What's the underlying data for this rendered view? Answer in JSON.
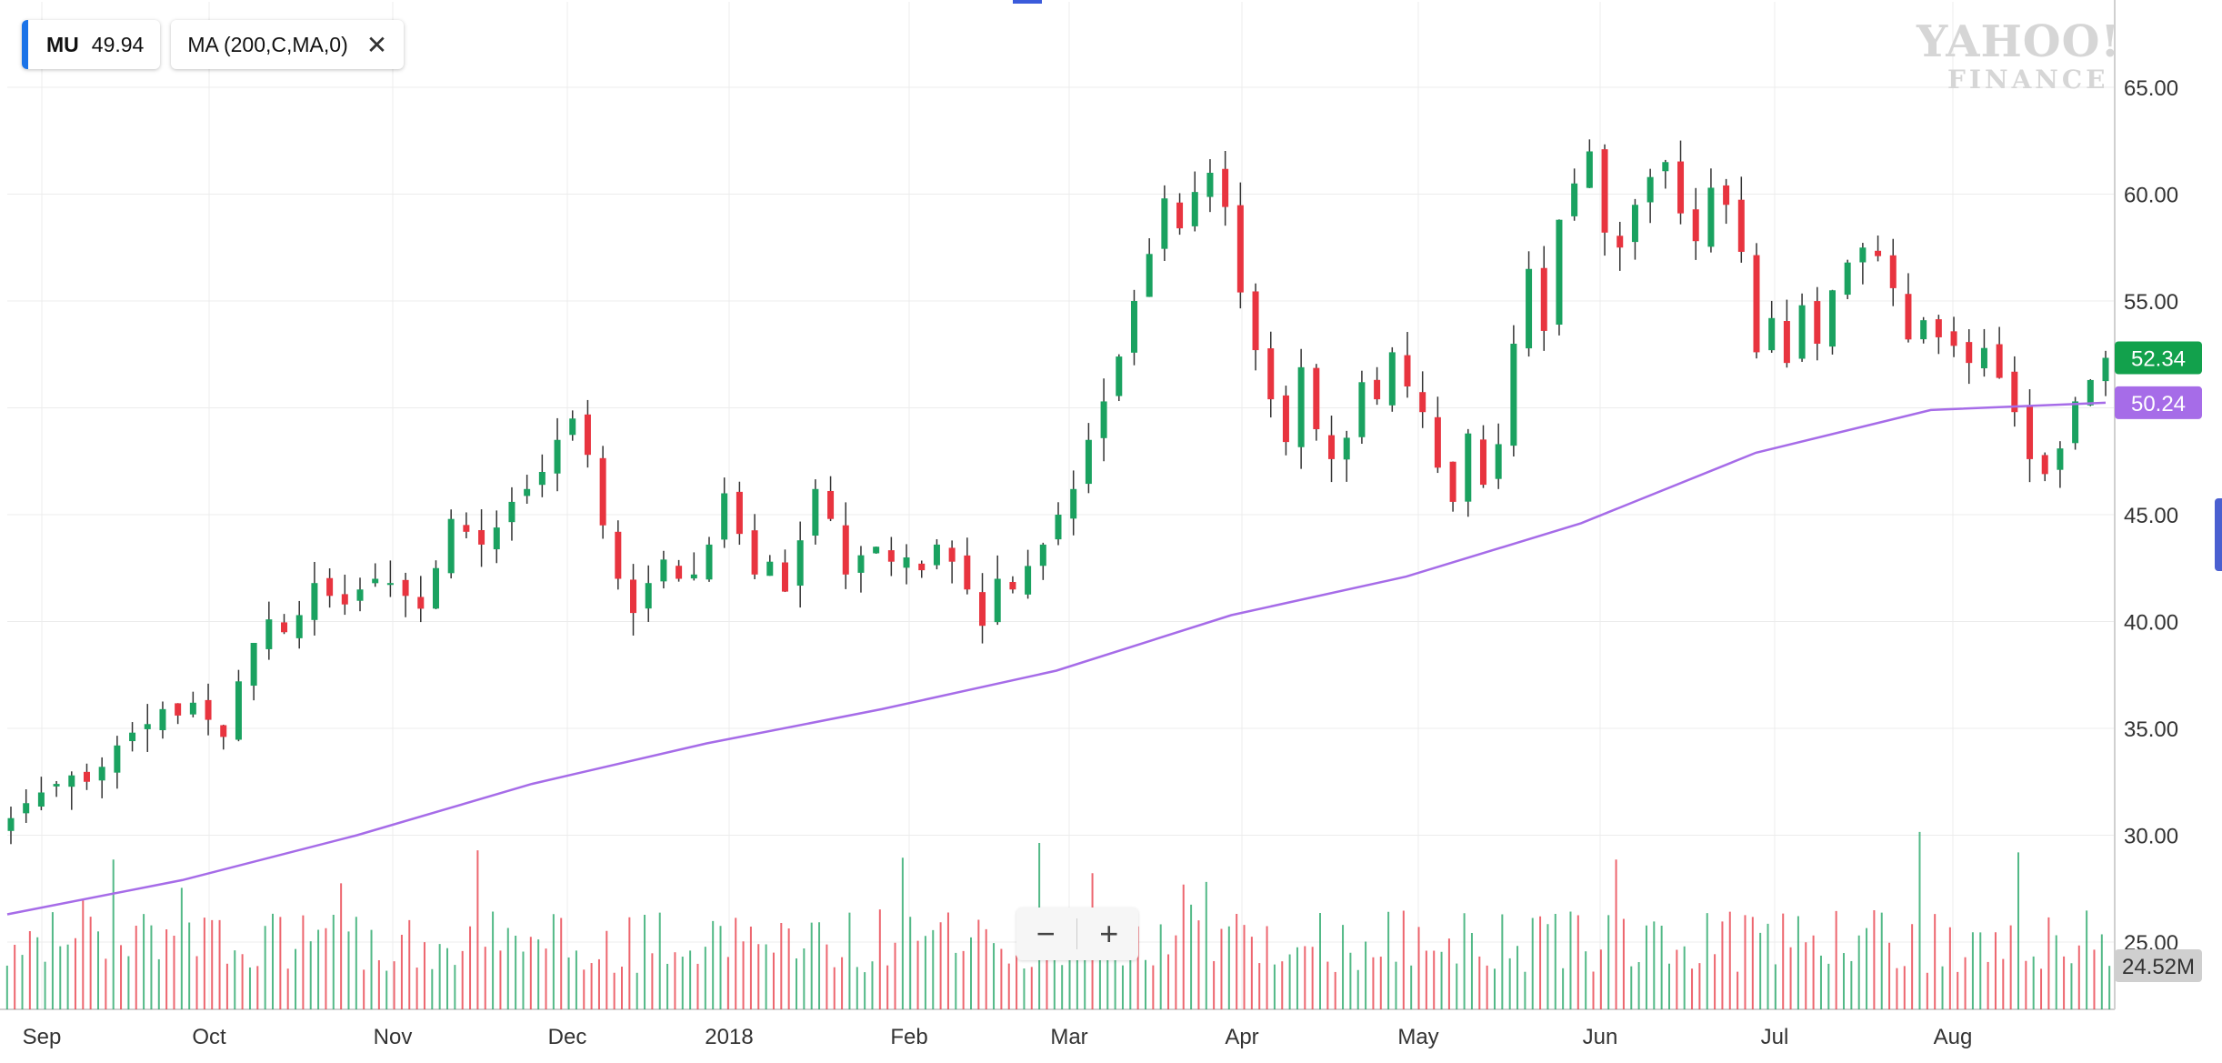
{
  "legend": {
    "symbol": "MU",
    "symbol_value": "49.94",
    "indicator": "MA (200,C,MA,0)",
    "close_icon": "close-icon"
  },
  "logo": {
    "line1": "YAHOO!",
    "line2": "FINANCE"
  },
  "zoom": {
    "minus": "−",
    "plus": "+"
  },
  "price_labels": {
    "last_price": "52.34",
    "ma_value": "50.24",
    "volume": "24.52M"
  },
  "colors": {
    "up": "#1aa260",
    "down": "#e8343f",
    "ma": "#a66ce8",
    "last_price_bg": "#12a14c",
    "ma_bg": "#a66ce8",
    "volume_bg": "#cfcfcf"
  },
  "chart_data": {
    "type": "candlestick",
    "y_axis": {
      "ticks": [
        "65.00",
        "60.00",
        "55.00",
        "50.00",
        "45.00",
        "40.00",
        "35.00",
        "30.00",
        "25.00"
      ],
      "ylim": [
        24.0,
        66.5
      ]
    },
    "x_axis": {
      "ticks": [
        "Sep",
        "Oct",
        "Nov",
        "Dec",
        "2018",
        "Feb",
        "Mar",
        "Apr",
        "May",
        "Jun",
        "Jul",
        "Aug"
      ]
    },
    "grid": true,
    "series": [
      {
        "kind": "ohlc",
        "note": "daily candles, approximate",
        "closes": [
          30.8,
          31.5,
          32.0,
          32.4,
          32.8,
          32.5,
          33.2,
          34.2,
          34.8,
          35.2,
          35.9,
          35.6,
          36.2,
          35.4,
          34.6,
          37.2,
          39.0,
          40.1,
          39.5,
          40.3,
          41.8,
          41.2,
          40.8,
          41.5,
          42.0,
          41.8,
          41.2,
          40.6,
          42.5,
          44.8,
          44.2,
          43.6,
          44.4,
          45.6,
          46.2,
          47.0,
          48.5,
          49.5,
          47.8,
          44.5,
          42.0,
          40.4,
          41.8,
          42.9,
          42.0,
          42.2,
          43.6,
          46.0,
          44.1,
          42.2,
          42.8,
          41.4,
          43.8,
          46.2,
          44.8,
          42.2,
          43.1,
          43.5,
          42.8,
          43.0,
          42.4,
          43.6,
          42.8,
          41.5,
          39.8,
          42.0,
          41.5,
          42.6,
          43.6,
          45.0,
          46.2,
          48.5,
          50.3,
          52.4,
          55.0,
          57.2,
          59.8,
          58.4,
          60.1,
          61.0,
          59.4,
          55.4,
          52.7,
          50.4,
          48.4,
          51.9,
          49.0,
          47.6,
          48.6,
          51.2,
          50.4,
          52.6,
          51.0,
          49.8,
          47.2,
          45.6,
          48.8,
          46.4,
          48.3,
          53.0,
          56.5,
          53.6,
          58.8,
          60.5,
          62.0,
          58.2,
          57.5,
          59.5,
          60.8,
          61.5,
          59.1,
          57.8,
          60.3,
          59.5,
          57.3,
          52.6,
          54.2,
          52.1,
          54.8,
          53.0,
          55.5,
          56.8,
          57.5,
          57.1,
          55.6,
          53.2,
          54.1,
          53.3,
          52.9,
          52.1,
          52.8,
          51.4,
          49.8,
          47.6,
          46.9,
          48.1,
          50.3,
          51.3,
          52.34
        ]
      },
      {
        "kind": "line",
        "name": "",
        "values": [
          26.3,
          27.9,
          30.0,
          32.4,
          34.3,
          35.9,
          37.7,
          40.3,
          42.1,
          44.6,
          47.9,
          49.9,
          50.24
        ]
      },
      {
        "kind": "volume",
        "max_label": "24.52M"
      }
    ]
  }
}
